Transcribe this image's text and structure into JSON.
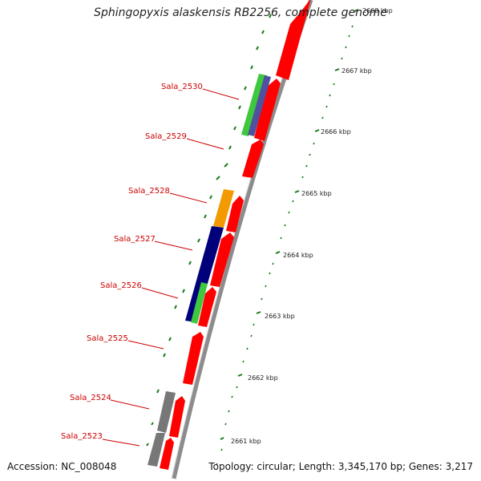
{
  "title": "Sphingopyxis alaskensis RB2256, complete genome",
  "accession": "Accession: NC_008048",
  "topology": "Topology: circular; Length: 3,345,170 bp; Genes: 3,217",
  "colors": {
    "backbone": "#8c8c8c",
    "cds": "#ff0000",
    "tick": "#1a7a1a",
    "label": "#cc0000"
  },
  "ticks": [
    {
      "label": "2661 kbp"
    },
    {
      "label": "2662 kbp"
    },
    {
      "label": "2663 kbp"
    },
    {
      "label": "2664 kbp"
    },
    {
      "label": "2665 kbp"
    },
    {
      "label": "2666 kbp"
    },
    {
      "label": "2667 kbp"
    },
    {
      "label": "2668 kbp"
    }
  ],
  "genes": [
    {
      "label": "Sala_2523"
    },
    {
      "label": "Sala_2524"
    },
    {
      "label": "Sala_2525"
    },
    {
      "label": "Sala_2526"
    },
    {
      "label": "Sala_2527"
    },
    {
      "label": "Sala_2528"
    },
    {
      "label": "Sala_2529"
    },
    {
      "label": "Sala_2530"
    }
  ]
}
